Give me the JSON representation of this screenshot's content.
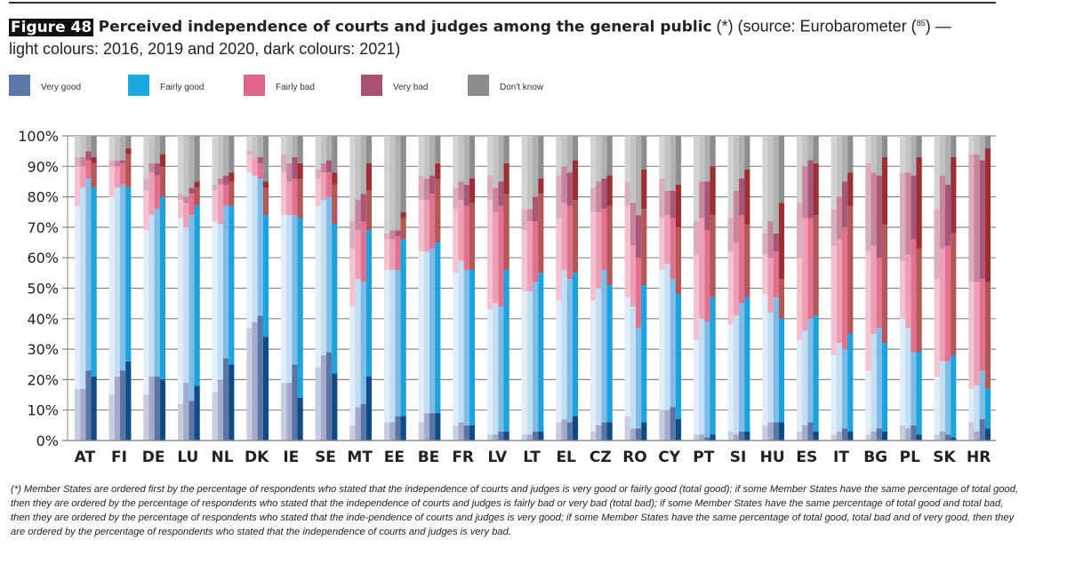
{
  "figure": {
    "label": "Figure 48",
    "title_bold": "Perceived independence of courts and judges among the general public",
    "title_rest": " (*) (source: Eurobarometer (",
    "footnote_ref": "85",
    "title_end": ") —",
    "subtitle": "light colours: 2016, 2019 and 2020, dark colours: 2021)"
  },
  "legend": [
    {
      "label": "Very good",
      "color": "#5a78a8"
    },
    {
      "label": "Fairly good",
      "color": "#1ba8de"
    },
    {
      "label": "Fairly bad",
      "color": "#e0678a"
    },
    {
      "label": "Very bad",
      "color": "#a9506f"
    },
    {
      "label": "Don't know",
      "color": "#8c8c8c"
    }
  ],
  "footnote": "(*) Member States are ordered first by the percentage of respondents who stated that the independence of courts and judges is very good or fairly good (total good); if some Member States have the same percentage of total good, then they are ordered by the percentage of respondents who stated that the independence of courts and judges is fairly bad or very bad (total bad); if some Member States have the same percentage of total good and total bad, then they are ordered by the percentage of respondents who stated that the inde-pendence of courts and judges is very good; if some Member States have the same percentage of total good, total bad and of very good, then they are ordered by the percentage of respondents who stated that the independence of courts and judges is very bad.",
  "chart_data": {
    "type": "bar",
    "stacked": true,
    "title": "Perceived independence of courts and judges among the general public",
    "xlabel": "",
    "ylabel": "",
    "ylim": [
      0,
      100
    ],
    "yticks": [
      "0%",
      "10%",
      "20%",
      "30%",
      "40%",
      "50%",
      "60%",
      "70%",
      "80%",
      "90%",
      "100%"
    ],
    "grid": true,
    "legend_position": "top",
    "years": [
      "2016",
      "2019",
      "2020",
      "2021"
    ],
    "series_names": [
      "Very good",
      "Fairly good",
      "Fairly bad",
      "Very bad",
      "Don't know"
    ],
    "categories": [
      "AT",
      "FI",
      "DE",
      "LU",
      "NL",
      "DK",
      "IE",
      "SE",
      "MT",
      "EE",
      "BE",
      "FR",
      "LV",
      "LT",
      "EL",
      "CZ",
      "RO",
      "CY",
      "PT",
      "SI",
      "HU",
      "ES",
      "IT",
      "BG",
      "PL",
      "SK",
      "HR"
    ],
    "colors": {
      "2016": [
        "#c9cde0",
        "#e1edf8",
        "#f4c3cf",
        "#dbaebd",
        "#d3d3d3"
      ],
      "2019": [
        "#a3aacb",
        "#c4def3",
        "#ee9fb3",
        "#c7859e",
        "#c3c3c3"
      ],
      "2020": [
        "#5b76a6",
        "#7fbde8",
        "#e4708f",
        "#a9567a",
        "#b0b0b0"
      ],
      "2021": [
        "#0f4c85",
        "#1aa3dc",
        "#b35757",
        "#9b2f35",
        "#8e8e8e"
      ]
    },
    "values": {
      "AT": [
        [
          17,
          60,
          13,
          3,
          7
        ],
        [
          17,
          66,
          7,
          3,
          7
        ],
        [
          23,
          63,
          6,
          3,
          5
        ],
        [
          21,
          62,
          8,
          2,
          7
        ]
      ],
      "FI": [
        [
          15,
          65,
          10,
          2,
          8
        ],
        [
          21,
          62,
          7,
          2,
          8
        ],
        [
          23,
          61,
          7,
          1,
          8
        ],
        [
          26,
          57,
          11,
          2,
          4
        ]
      ],
      "DE": [
        [
          15,
          54,
          13,
          4,
          14
        ],
        [
          21,
          53,
          14,
          3,
          9
        ],
        [
          21,
          55,
          11,
          4,
          9
        ],
        [
          20,
          60,
          10,
          4,
          6
        ]
      ],
      "LU": [
        [
          12,
          61,
          6,
          2,
          19
        ],
        [
          19,
          51,
          8,
          2,
          20
        ],
        [
          13,
          61,
          7,
          2,
          17
        ],
        [
          18,
          59,
          6,
          2,
          15
        ]
      ],
      "NL": [
        [
          16,
          56,
          10,
          2,
          16
        ],
        [
          20,
          51,
          13,
          2,
          14
        ],
        [
          27,
          50,
          7,
          3,
          13
        ],
        [
          25,
          52,
          8,
          3,
          12
        ]
      ],
      "DK": [
        [
          37,
          51,
          6,
          1,
          5
        ],
        [
          39,
          48,
          6,
          0,
          7
        ],
        [
          41,
          45,
          5,
          2,
          7
        ],
        [
          34,
          40,
          9,
          2,
          15
        ]
      ],
      "IE": [
        [
          19,
          55,
          14,
          6,
          6
        ],
        [
          19,
          55,
          11,
          6,
          9
        ],
        [
          25,
          49,
          12,
          7,
          7
        ],
        [
          14,
          59,
          13,
          5,
          9
        ]
      ],
      "SE": [
        [
          24,
          53,
          9,
          3,
          11
        ],
        [
          28,
          51,
          9,
          3,
          9
        ],
        [
          29,
          51,
          8,
          4,
          8
        ],
        [
          22,
          49,
          13,
          4,
          12
        ]
      ],
      "MT": [
        [
          5,
          39,
          19,
          9,
          28
        ],
        [
          11,
          42,
          16,
          10,
          21
        ],
        [
          12,
          40,
          20,
          9,
          19
        ],
        [
          21,
          48,
          13,
          9,
          9
        ]
      ],
      "EE": [
        [
          6,
          50,
          10,
          2,
          32
        ],
        [
          6,
          50,
          10,
          3,
          31
        ],
        [
          8,
          48,
          11,
          2,
          31
        ],
        [
          8,
          58,
          7,
          2,
          25
        ]
      ],
      "BE": [
        [
          6,
          56,
          17,
          8,
          13
        ],
        [
          9,
          53,
          17,
          7,
          14
        ],
        [
          9,
          54,
          18,
          6,
          13
        ],
        [
          9,
          56,
          21,
          5,
          9
        ]
      ],
      "FR": [
        [
          5,
          50,
          21,
          7,
          17
        ],
        [
          6,
          53,
          20,
          6,
          15
        ],
        [
          5,
          51,
          21,
          7,
          16
        ],
        [
          5,
          51,
          22,
          8,
          14
        ]
      ],
      "LV": [
        [
          2,
          41,
          36,
          8,
          13
        ],
        [
          2,
          43,
          30,
          8,
          17
        ],
        [
          3,
          41,
          33,
          8,
          15
        ],
        [
          3,
          53,
          25,
          10,
          9
        ]
      ],
      "LT": [
        [
          2,
          47,
          20,
          7,
          24
        ],
        [
          2,
          47,
          23,
          4,
          24
        ],
        [
          3,
          49,
          20,
          8,
          20
        ],
        [
          3,
          52,
          26,
          5,
          14
        ]
      ],
      "EL": [
        [
          6,
          40,
          27,
          14,
          13
        ],
        [
          7,
          49,
          22,
          12,
          10
        ],
        [
          6,
          47,
          24,
          11,
          12
        ],
        [
          8,
          47,
          24,
          13,
          8
        ]
      ],
      "CZ": [
        [
          3,
          43,
          29,
          8,
          17
        ],
        [
          5,
          45,
          25,
          10,
          15
        ],
        [
          6,
          50,
          20,
          10,
          14
        ],
        [
          6,
          45,
          26,
          10,
          13
        ]
      ],
      "RO": [
        [
          8,
          39,
          30,
          8,
          15
        ],
        [
          4,
          40,
          20,
          14,
          22
        ],
        [
          4,
          33,
          23,
          14,
          26
        ],
        [
          6,
          45,
          25,
          13,
          11
        ]
      ],
      "CY": [
        [
          10,
          46,
          17,
          13,
          14
        ],
        [
          10,
          48,
          16,
          8,
          18
        ],
        [
          11,
          42,
          20,
          9,
          18
        ],
        [
          7,
          41,
          22,
          14,
          16
        ]
      ],
      "PT": [
        [
          2,
          31,
          28,
          11,
          28
        ],
        [
          2,
          38,
          33,
          12,
          15
        ],
        [
          1,
          38,
          30,
          16,
          15
        ],
        [
          2,
          45,
          27,
          16,
          10
        ]
      ],
      "SI": [
        [
          3,
          35,
          24,
          11,
          27
        ],
        [
          2,
          39,
          24,
          17,
          18
        ],
        [
          3,
          42,
          29,
          12,
          14
        ],
        [
          3,
          44,
          24,
          18,
          11
        ]
      ],
      "HU": [
        [
          5,
          43,
          13,
          7,
          32
        ],
        [
          6,
          36,
          18,
          12,
          28
        ],
        [
          6,
          41,
          15,
          6,
          32
        ],
        [
          6,
          34,
          13,
          25,
          22
        ]
      ],
      "ES": [
        [
          3,
          30,
          27,
          18,
          22
        ],
        [
          5,
          31,
          37,
          17,
          10
        ],
        [
          6,
          34,
          33,
          19,
          8
        ],
        [
          3,
          38,
          33,
          17,
          9
        ]
      ],
      "IT": [
        [
          2,
          26,
          36,
          12,
          24
        ],
        [
          3,
          29,
          34,
          14,
          20
        ],
        [
          4,
          26,
          40,
          15,
          15
        ],
        [
          3,
          32,
          42,
          11,
          12
        ]
      ],
      "BG": [
        [
          2,
          21,
          39,
          29,
          9
        ],
        [
          3,
          32,
          29,
          24,
          12
        ],
        [
          4,
          33,
          23,
          27,
          13
        ],
        [
          3,
          29,
          39,
          22,
          7
        ]
      ],
      "PL": [
        [
          5,
          35,
          19,
          29,
          12
        ],
        [
          4,
          33,
          24,
          27,
          12
        ],
        [
          5,
          24,
          37,
          21,
          13
        ],
        [
          2,
          27,
          34,
          30,
          7
        ]
      ],
      "SK": [
        [
          2,
          19,
          32,
          23,
          24
        ],
        [
          3,
          23,
          37,
          24,
          13
        ],
        [
          2,
          24,
          38,
          20,
          16
        ],
        [
          1,
          27,
          40,
          25,
          7
        ]
      ],
      "HR": [
        [
          6,
          11,
          35,
          42,
          6
        ],
        [
          3,
          15,
          34,
          42,
          6
        ],
        [
          7,
          16,
          30,
          39,
          8
        ],
        [
          4,
          13,
          35,
          44,
          4
        ]
      ]
    }
  }
}
